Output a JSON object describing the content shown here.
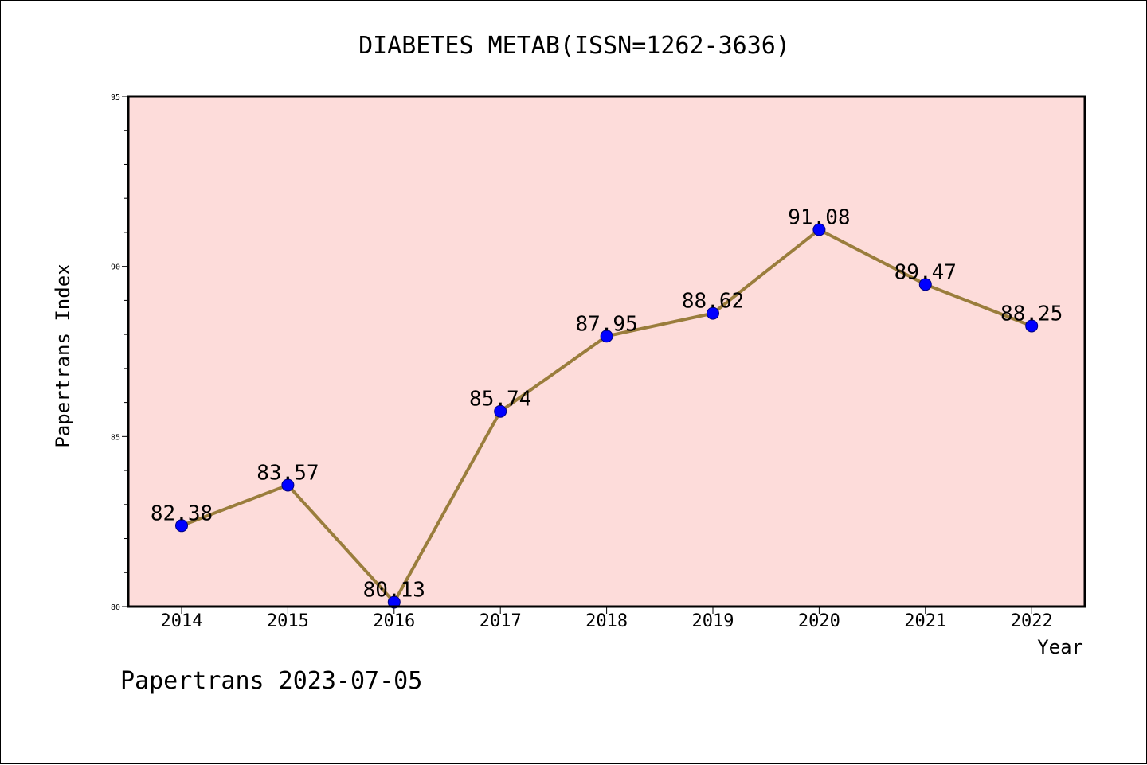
{
  "chart_data": {
    "type": "line",
    "title": "DIABETES METAB(ISSN=1262-3636)",
    "xlabel": "Year",
    "ylabel": "Papertrans Index",
    "categories": [
      "2014",
      "2015",
      "2016",
      "2017",
      "2018",
      "2019",
      "2020",
      "2021",
      "2022"
    ],
    "values": [
      82.38,
      83.57,
      80.13,
      85.74,
      87.95,
      88.62,
      91.08,
      89.47,
      88.25
    ],
    "data_labels": [
      "82.38",
      "83.57",
      "80.13",
      "85.74",
      "87.95",
      "88.62",
      "91.08",
      "89.47",
      "88.25"
    ],
    "ylim": [
      80,
      95
    ],
    "yticks": [
      "80",
      "85",
      "90",
      "95"
    ],
    "ytick_values": [
      80,
      85,
      90,
      95
    ],
    "minor_ystep": 1,
    "grid": false,
    "legend": "none",
    "line_color": "#9a7d3c",
    "marker_color": "#0000ff",
    "plot_background": "#fddcda"
  },
  "footer": {
    "note": "Papertrans 2023-07-05"
  }
}
